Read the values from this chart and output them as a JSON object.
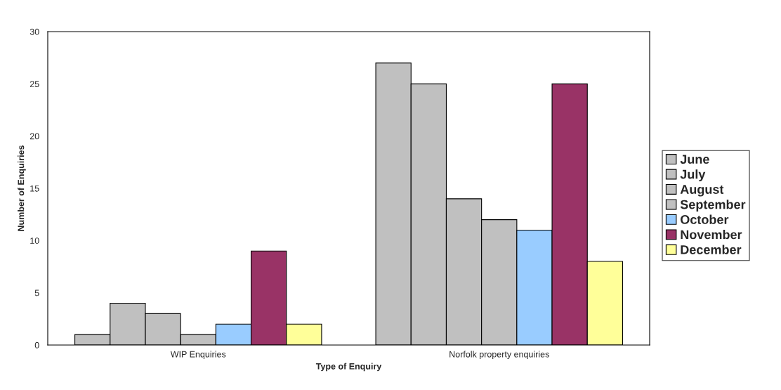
{
  "chart_data": {
    "type": "bar",
    "xlabel": "Type of Enquiry",
    "ylabel": "Number of Enquiries",
    "categories": [
      "WIP Enquiries",
      "Norfolk property enquiries"
    ],
    "series": [
      {
        "name": "June",
        "color": "#c0c0c0",
        "values": [
          1,
          27
        ]
      },
      {
        "name": "July",
        "color": "#c0c0c0",
        "values": [
          4,
          25
        ]
      },
      {
        "name": "August",
        "color": "#c0c0c0",
        "values": [
          3,
          14
        ]
      },
      {
        "name": "September",
        "color": "#c0c0c0",
        "values": [
          1,
          12
        ]
      },
      {
        "name": "October",
        "color": "#99ccff",
        "values": [
          2,
          11
        ]
      },
      {
        "name": "November",
        "color": "#993366",
        "values": [
          9,
          25
        ]
      },
      {
        "name": "December",
        "color": "#ffff99",
        "values": [
          2,
          8
        ]
      }
    ],
    "ylim": [
      0,
      30
    ],
    "yticks": [
      0,
      5,
      10,
      15,
      20,
      25,
      30
    ],
    "grid": false,
    "legend": "right"
  }
}
